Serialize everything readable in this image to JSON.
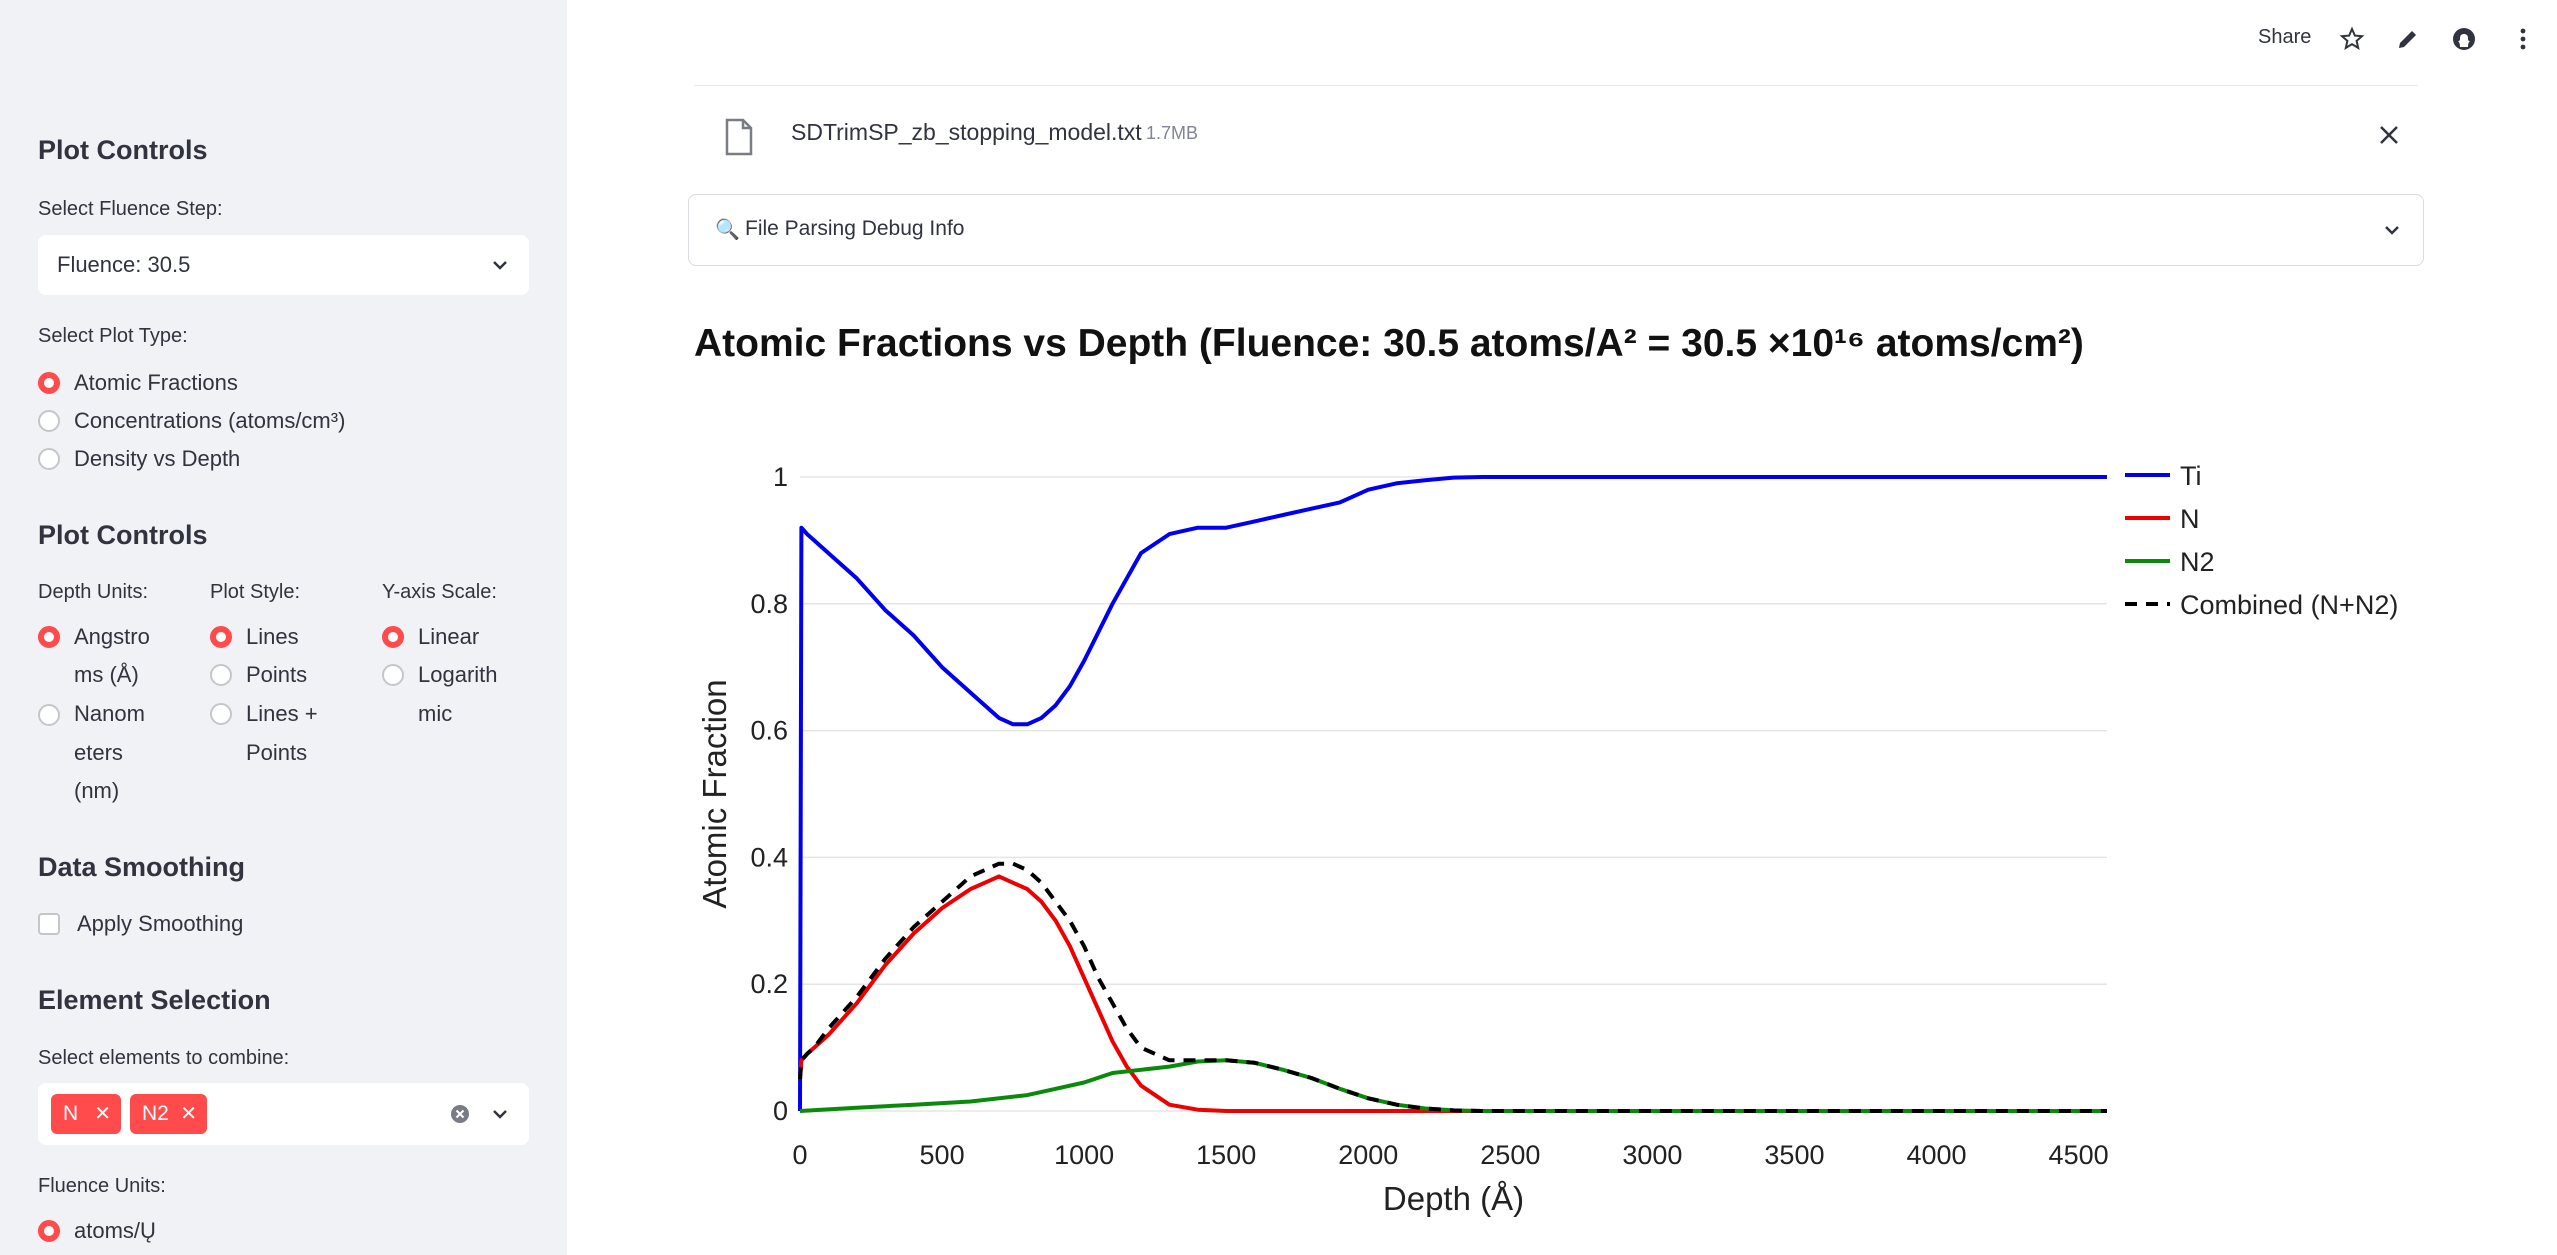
{
  "sidebar": {
    "plot_controls_header": "Plot Controls",
    "fluence_label": "Select Fluence Step:",
    "fluence_value": "Fluence: 30.5",
    "plot_type_label": "Select Plot Type:",
    "plot_type_options": [
      "Atomic Fractions",
      "Concentrations (atoms/cm³)",
      "Density vs Depth"
    ],
    "plot_type_selected": "Atomic Fractions",
    "plot_controls_header2": "Plot Controls",
    "depth_units_label": "Depth Units:",
    "depth_units_options": [
      [
        "Angstro",
        "ms (Å)"
      ],
      [
        "Nanom",
        "eters",
        "(nm)"
      ]
    ],
    "depth_units_selected": "Angstroms (Å)",
    "plot_style_label": "Plot Style:",
    "plot_style_options": [
      [
        "Lines"
      ],
      [
        "Points"
      ],
      [
        "Lines +",
        "Points"
      ]
    ],
    "plot_style_selected": "Lines",
    "yscale_label": "Y-axis Scale:",
    "yscale_options": [
      [
        "Linear"
      ],
      [
        "Logarith",
        "mic"
      ]
    ],
    "yscale_selected": "Linear",
    "smoothing_header": "Data Smoothing",
    "smoothing_checkbox": "Apply Smoothing",
    "element_header": "Element Selection",
    "combine_label": "Select elements to combine:",
    "combine_tags": [
      "N",
      "N2"
    ],
    "fluence_units_label": "Fluence Units:",
    "fluence_units_first": "atoms/Ų"
  },
  "header": {
    "share_label": "Share"
  },
  "file": {
    "name": "SDTrimSP_zb_stopping_model.txt",
    "size": "1.7MB"
  },
  "expander": {
    "icon": "🔍",
    "label": "File Parsing Debug Info"
  },
  "chart_title": "Atomic Fractions vs Depth (Fluence: 30.5 atoms/A² = 30.5 ×10¹⁶ atoms/cm²)",
  "colors": {
    "accent": "#ff4b4b",
    "ti": "#0000ee",
    "n": "#ee0000",
    "n2": "#0a8a0a",
    "combined": "#000000"
  },
  "chart_data": {
    "type": "line",
    "title": "",
    "xlabel": "Depth (Å)",
    "ylabel": "Atomic Fraction",
    "xlim": [
      0,
      4600
    ],
    "ylim": [
      0,
      1
    ],
    "xticks": [
      0,
      500,
      1000,
      1500,
      2000,
      2500,
      3000,
      3500,
      4000,
      4500
    ],
    "yticks": [
      0,
      0.2,
      0.4,
      0.6,
      0.8,
      1
    ],
    "ytick_labels": [
      "0",
      "0.2",
      "0.4",
      "0.6",
      "0.8",
      "1"
    ],
    "grid": true,
    "legend_position": "right",
    "series": [
      {
        "name": "Ti",
        "style": "solid",
        "x": [
          0,
          5,
          25,
          50,
          100,
          200,
          300,
          400,
          500,
          600,
          650,
          700,
          750,
          800,
          850,
          900,
          950,
          1000,
          1100,
          1200,
          1300,
          1400,
          1500,
          1600,
          1700,
          1800,
          1900,
          2000,
          2100,
          2200,
          2300,
          2400,
          2500,
          3000,
          3500,
          4000,
          4600
        ],
        "y": [
          0.0,
          0.92,
          0.91,
          0.9,
          0.88,
          0.84,
          0.79,
          0.75,
          0.7,
          0.66,
          0.64,
          0.62,
          0.61,
          0.61,
          0.62,
          0.64,
          0.67,
          0.71,
          0.8,
          0.88,
          0.91,
          0.92,
          0.92,
          0.93,
          0.94,
          0.95,
          0.96,
          0.98,
          0.99,
          0.995,
          0.999,
          1.0,
          1.0,
          1.0,
          1.0,
          1.0,
          1.0
        ]
      },
      {
        "name": "N",
        "style": "solid",
        "x": [
          0,
          5,
          25,
          50,
          100,
          200,
          300,
          400,
          500,
          600,
          650,
          700,
          750,
          800,
          850,
          900,
          950,
          1000,
          1050,
          1100,
          1150,
          1200,
          1300,
          1400,
          1500,
          2000,
          3000,
          4600
        ],
        "y": [
          0.05,
          0.08,
          0.09,
          0.1,
          0.12,
          0.17,
          0.23,
          0.28,
          0.32,
          0.35,
          0.36,
          0.37,
          0.36,
          0.35,
          0.33,
          0.3,
          0.26,
          0.21,
          0.16,
          0.11,
          0.07,
          0.04,
          0.01,
          0.002,
          0.0,
          0.0,
          0.0,
          0.0
        ]
      },
      {
        "name": "N2",
        "style": "solid",
        "x": [
          0,
          200,
          400,
          600,
          800,
          900,
          1000,
          1100,
          1200,
          1300,
          1400,
          1500,
          1600,
          1700,
          1800,
          1900,
          2000,
          2100,
          2200,
          2300,
          2400,
          3000,
          4600
        ],
        "y": [
          0.0,
          0.005,
          0.01,
          0.015,
          0.025,
          0.035,
          0.045,
          0.06,
          0.065,
          0.07,
          0.078,
          0.08,
          0.076,
          0.065,
          0.052,
          0.035,
          0.02,
          0.01,
          0.004,
          0.001,
          0.0,
          0.0,
          0.0
        ]
      },
      {
        "name": "Combined (N+N2)",
        "style": "dash",
        "x": [
          0,
          5,
          25,
          50,
          100,
          200,
          300,
          400,
          500,
          600,
          650,
          700,
          750,
          800,
          850,
          900,
          950,
          1000,
          1050,
          1100,
          1150,
          1200,
          1300,
          1400,
          1500,
          1600,
          1700,
          1800,
          1900,
          2000,
          2100,
          2200,
          2300,
          2400,
          3000,
          4600
        ],
        "y": [
          0.05,
          0.08,
          0.09,
          0.1,
          0.13,
          0.18,
          0.24,
          0.29,
          0.33,
          0.37,
          0.38,
          0.39,
          0.39,
          0.38,
          0.36,
          0.33,
          0.3,
          0.26,
          0.21,
          0.17,
          0.13,
          0.1,
          0.08,
          0.08,
          0.08,
          0.076,
          0.065,
          0.052,
          0.035,
          0.02,
          0.01,
          0.004,
          0.001,
          0.0,
          0.0,
          0.0
        ]
      }
    ]
  }
}
